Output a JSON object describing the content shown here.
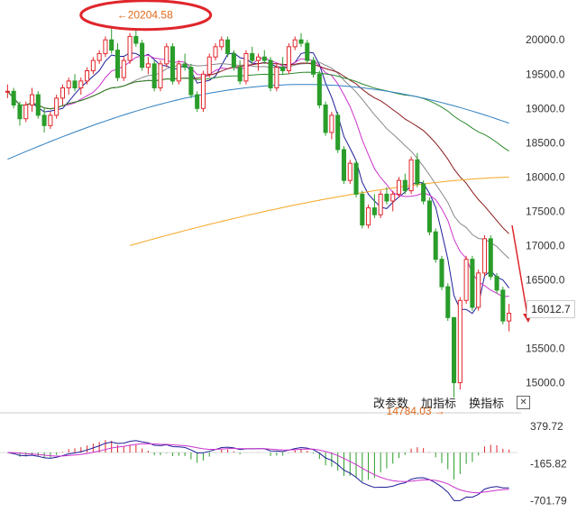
{
  "chart_data": {
    "type": "candlestick",
    "annotations": {
      "high": "20204.58",
      "low": "14784.03",
      "last": "16012.7"
    },
    "y_axis": {
      "ticks": [
        "20000.0",
        "19500.0",
        "19000.0",
        "18500.0",
        "18000.0",
        "17500.0",
        "17000.0",
        "16500.0",
        "16000.0",
        "15500.0",
        "15000.0"
      ],
      "range": [
        14600,
        20450
      ]
    },
    "indicator_axis": {
      "ticks": [
        "379.72",
        "-165.82",
        "-701.79"
      ]
    },
    "colors": {
      "up": "#e0262b",
      "down": "#2a9d2a",
      "ma5": "#1f1f99",
      "ma10": "#cc33cc",
      "ma20": "#888888",
      "ma30": "#8b1a1a",
      "ma60": "#2e8b2e",
      "ma120": "#2f7fc1",
      "ma250": "#f5a623",
      "macd_dif": "#1f1f99",
      "macd_dea": "#cc33cc",
      "highlight": "#e0262b",
      "arrow": "#e0262b"
    },
    "candles": [
      [
        19250,
        19350,
        19150,
        19250
      ],
      [
        19250,
        19300,
        19000,
        19050
      ],
      [
        19050,
        19100,
        18750,
        18850
      ],
      [
        18850,
        19100,
        18800,
        19050
      ],
      [
        19050,
        19300,
        18950,
        19200
      ],
      [
        19200,
        19250,
        18850,
        18900
      ],
      [
        18900,
        19000,
        18650,
        18750
      ],
      [
        18750,
        18950,
        18700,
        18900
      ],
      [
        18900,
        19200,
        18850,
        19150
      ],
      [
        19150,
        19350,
        19050,
        19300
      ],
      [
        19300,
        19450,
        19200,
        19400
      ],
      [
        19400,
        19500,
        19250,
        19300
      ],
      [
        19300,
        19450,
        19200,
        19400
      ],
      [
        19400,
        19600,
        19350,
        19550
      ],
      [
        19550,
        19750,
        19500,
        19700
      ],
      [
        19700,
        19850,
        19650,
        19800
      ],
      [
        19800,
        20050,
        19750,
        20000
      ],
      [
        20000,
        20204,
        19800,
        19850
      ],
      [
        19850,
        19950,
        19400,
        19450
      ],
      [
        19450,
        19750,
        19400,
        19700
      ],
      [
        19700,
        20100,
        19650,
        20050
      ],
      [
        20050,
        20150,
        19900,
        19950
      ],
      [
        19950,
        20000,
        19550,
        19600
      ],
      [
        19600,
        19750,
        19500,
        19650
      ],
      [
        19650,
        19700,
        19250,
        19300
      ],
      [
        19300,
        19700,
        19250,
        19650
      ],
      [
        19650,
        19950,
        19600,
        19900
      ],
      [
        19900,
        19950,
        19350,
        19400
      ],
      [
        19400,
        19700,
        19350,
        19650
      ],
      [
        19650,
        19800,
        19550,
        19600
      ],
      [
        19600,
        19650,
        19150,
        19200
      ],
      [
        19200,
        19250,
        18950,
        19000
      ],
      [
        19000,
        19550,
        18950,
        19500
      ],
      [
        19500,
        19800,
        19450,
        19750
      ],
      [
        19750,
        19950,
        19700,
        19900
      ],
      [
        19900,
        20050,
        19850,
        20000
      ],
      [
        20000,
        20050,
        19750,
        19800
      ],
      [
        19800,
        19850,
        19550,
        19600
      ],
      [
        19600,
        19700,
        19350,
        19400
      ],
      [
        19400,
        19850,
        19350,
        19800
      ],
      [
        19800,
        19900,
        19650,
        19700
      ],
      [
        19700,
        19800,
        19550,
        19750
      ],
      [
        19750,
        19850,
        19650,
        19700
      ],
      [
        19700,
        19750,
        19250,
        19300
      ],
      [
        19300,
        19650,
        19250,
        19600
      ],
      [
        19600,
        19750,
        19500,
        19550
      ],
      [
        19550,
        19950,
        19500,
        19900
      ],
      [
        19900,
        20050,
        19850,
        20000
      ],
      [
        20000,
        20100,
        19900,
        19950
      ],
      [
        19950,
        20000,
        19650,
        19700
      ],
      [
        19700,
        19750,
        19450,
        19500
      ],
      [
        19500,
        19550,
        19000,
        19050
      ],
      [
        19050,
        19100,
        18600,
        18650
      ],
      [
        18650,
        18950,
        18550,
        18900
      ],
      [
        18900,
        18950,
        18350,
        18400
      ],
      [
        18400,
        18450,
        17900,
        17950
      ],
      [
        17950,
        18250,
        17900,
        18200
      ],
      [
        18200,
        18250,
        17700,
        17750
      ],
      [
        17750,
        17800,
        17250,
        17300
      ],
      [
        17300,
        17600,
        17250,
        17550
      ],
      [
        17550,
        17750,
        17400,
        17450
      ],
      [
        17450,
        17800,
        17400,
        17750
      ],
      [
        17750,
        17850,
        17600,
        17650
      ],
      [
        17650,
        17800,
        17500,
        17750
      ],
      [
        17750,
        18000,
        17700,
        17950
      ],
      [
        17950,
        18050,
        17750,
        17800
      ],
      [
        17800,
        18300,
        17750,
        18250
      ],
      [
        18250,
        18350,
        17850,
        17900
      ],
      [
        17900,
        17950,
        17600,
        17650
      ],
      [
        17650,
        17700,
        17150,
        17200
      ],
      [
        17200,
        17250,
        16750,
        16800
      ],
      [
        16800,
        16850,
        16350,
        16400
      ],
      [
        16400,
        16450,
        15900,
        15950
      ],
      [
        15950,
        15950,
        14784,
        15000
      ],
      [
        15000,
        16250,
        14900,
        16200
      ],
      [
        16200,
        16850,
        16150,
        16800
      ],
      [
        16800,
        16850,
        16050,
        16100
      ],
      [
        16100,
        16650,
        16050,
        16600
      ],
      [
        16600,
        17150,
        16550,
        17100
      ],
      [
        17100,
        17150,
        16500,
        16550
      ],
      [
        16550,
        16600,
        16300,
        16350
      ],
      [
        16350,
        16400,
        15850,
        15900
      ],
      [
        15900,
        16150,
        15750,
        16012.7
      ]
    ]
  },
  "toolbar": {
    "params": "改参数",
    "add": "加指标",
    "switch": "换指标",
    "close": "✕"
  }
}
